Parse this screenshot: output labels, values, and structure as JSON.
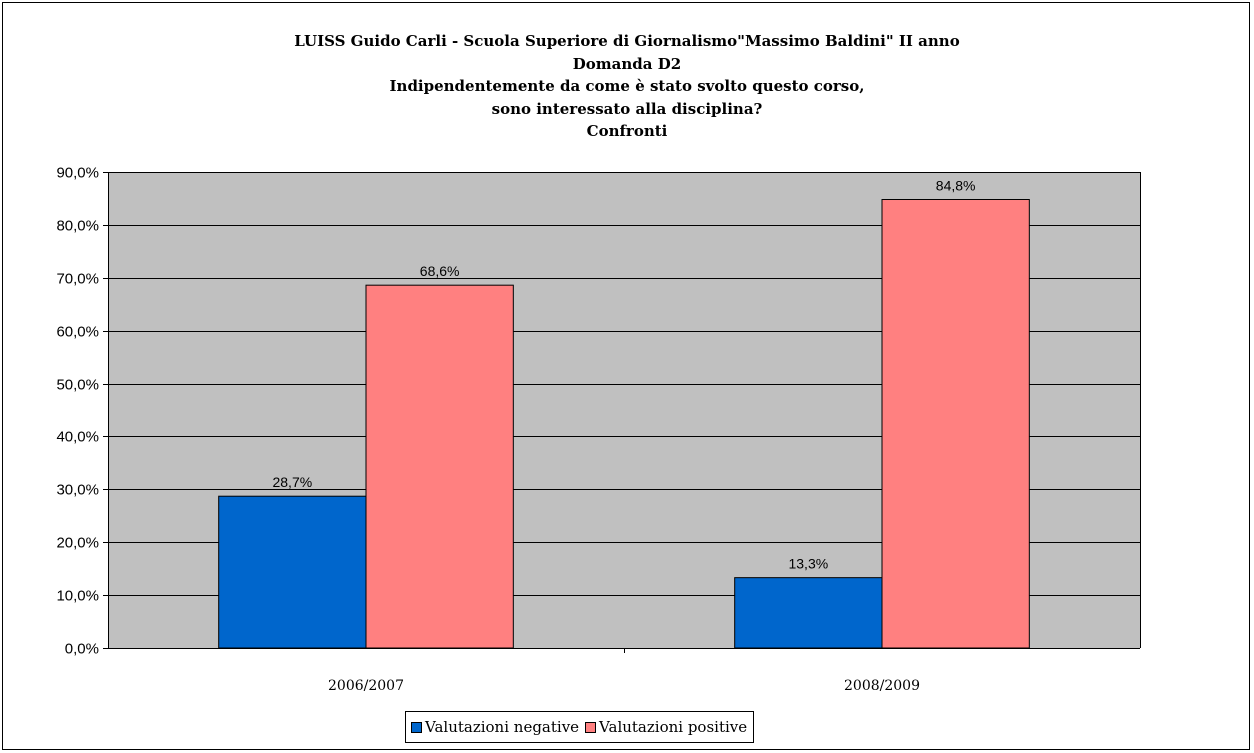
{
  "chart_data": {
    "type": "bar",
    "title_lines": [
      "LUISS Guido Carli - Scuola Superiore di Giornalismo\"Massimo Baldini\" II anno",
      "Domanda D2",
      "Indipendentemente da come è stato svolto questo corso,",
      "sono interessato alla disciplina?",
      "Confronti"
    ],
    "categories": [
      "2006/2007",
      "2008/2009"
    ],
    "series": [
      {
        "name": "Valutazioni negative",
        "values": [
          28.7,
          13.3
        ],
        "labels": [
          "28,7%",
          "13,3%"
        ],
        "color": "#0066CC"
      },
      {
        "name": "Valutazioni positive",
        "values": [
          68.6,
          84.8
        ],
        "labels": [
          "68,6%",
          "84,8%"
        ],
        "color": "#FF8080"
      }
    ],
    "ylim": [
      0,
      90
    ],
    "yticks": [
      0,
      10,
      20,
      30,
      40,
      50,
      60,
      70,
      80,
      90
    ],
    "ytick_labels": [
      "0,0%",
      "10,0%",
      "20,0%",
      "30,0%",
      "40,0%",
      "50,0%",
      "60,0%",
      "70,0%",
      "80,0%",
      "90,0%"
    ],
    "grid": true,
    "plot_background": "#C0C0C0",
    "legend_position": "bottom"
  }
}
